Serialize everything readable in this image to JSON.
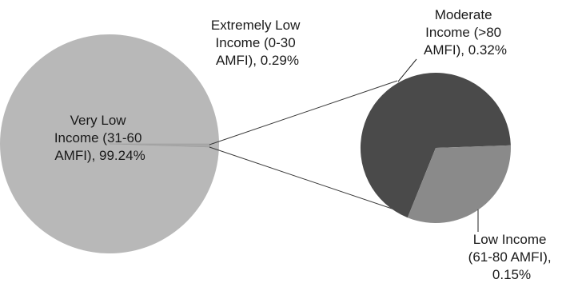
{
  "chart_data": {
    "type": "pie",
    "subtype": "pie-of-pie",
    "slices": [
      {
        "label_lines": [
          "Very Low",
          "Income (31-60",
          "AMFI), 99.24%"
        ],
        "value": 99.24,
        "color": "#b8b8b8"
      },
      {
        "label_lines": [
          "Extremely Low",
          "Income (0-30",
          "AMFI), 0.29%"
        ],
        "value": 0.29,
        "color": "#b8b8b8"
      },
      {
        "label_lines": [
          "Moderate",
          "Income (>80",
          "AMFI), 0.32%"
        ],
        "value": 0.32,
        "color": "#4a4a4a"
      },
      {
        "label_lines": [
          "Low Income",
          "(61-80 AMFI),",
          "0.15%"
        ],
        "value": 0.15,
        "color": "#8a8a8a"
      }
    ],
    "secondary_pie_slices": [
      2,
      3
    ],
    "title": "",
    "legend": "none"
  }
}
